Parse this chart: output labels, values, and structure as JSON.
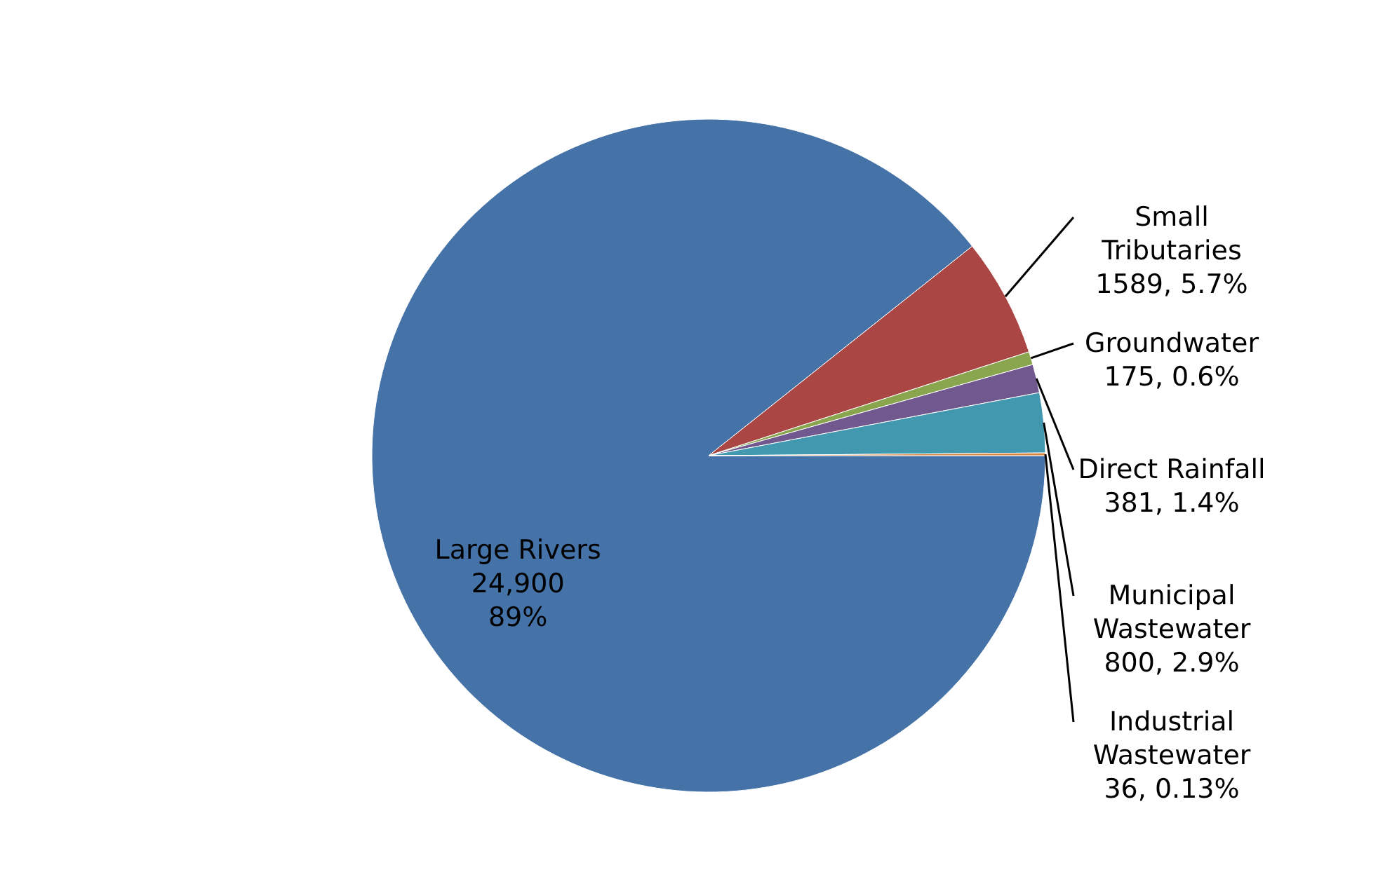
{
  "chart_data": {
    "type": "pie",
    "categories": [
      "Large Rivers",
      "Small Tributaries",
      "Groundwater",
      "Direct Rainfall",
      "Municipal Wastewater",
      "Industrial Wastewater"
    ],
    "values": [
      24900,
      1589,
      175,
      381,
      800,
      36
    ],
    "colors": [
      "#4572a7",
      "#aa4643",
      "#89a54e",
      "#71588f",
      "#4198af",
      "#db843d"
    ],
    "value_labels": [
      "24,900 89%",
      "1589, 5.7%",
      "175, 0.6%",
      "381, 1.4%",
      "800, 2.9%",
      "36, 0.13%"
    ]
  }
}
